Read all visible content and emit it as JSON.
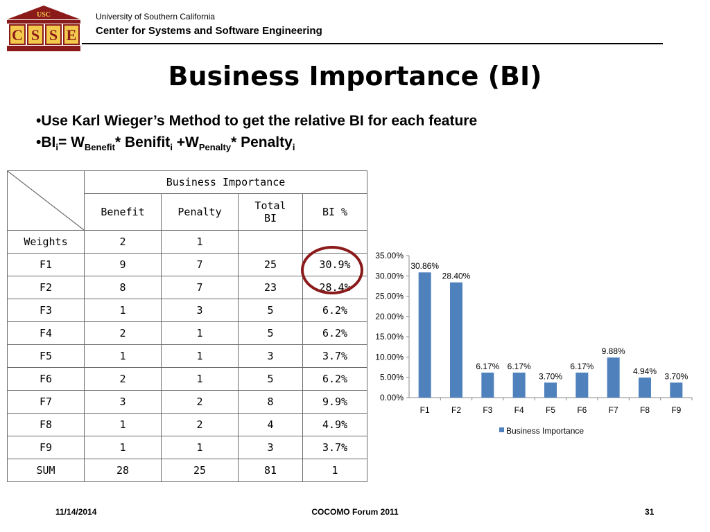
{
  "header": {
    "logo_text": "USC",
    "logo_letters": [
      "C",
      "S",
      "S",
      "E"
    ],
    "university": "University of Southern California",
    "center": "Center for Systems and Software Engineering"
  },
  "title": "Business Importance (BI)",
  "bullets": {
    "b1": "•Use Karl Wieger’s Method to get the relative BI for each feature",
    "b2": {
      "prefix": "•BI",
      "sub_i": "i",
      "eq": "= W",
      "sub_benefit": "Benefit",
      "mid": "* Benifit",
      "plus": " +W",
      "sub_penalty": "Penalty",
      "end": "* Penalty"
    }
  },
  "table": {
    "group_header": "Business Importance",
    "columns": [
      "Benefit",
      "Penalty",
      "Total BI",
      "BI %"
    ],
    "rows": [
      {
        "label": "Weights",
        "benefit": "2",
        "penalty": "1",
        "total": "",
        "bi": ""
      },
      {
        "label": "F1",
        "benefit": "9",
        "penalty": "7",
        "total": "25",
        "bi": "30.9%"
      },
      {
        "label": "F2",
        "benefit": "8",
        "penalty": "7",
        "total": "23",
        "bi": "28.4%"
      },
      {
        "label": "F3",
        "benefit": "1",
        "penalty": "3",
        "total": "5",
        "bi": "6.2%"
      },
      {
        "label": "F4",
        "benefit": "2",
        "penalty": "1",
        "total": "5",
        "bi": "6.2%"
      },
      {
        "label": "F5",
        "benefit": "1",
        "penalty": "1",
        "total": "3",
        "bi": "3.7%"
      },
      {
        "label": "F6",
        "benefit": "2",
        "penalty": "1",
        "total": "5",
        "bi": "6.2%"
      },
      {
        "label": "F7",
        "benefit": "3",
        "penalty": "2",
        "total": "8",
        "bi": "9.9%"
      },
      {
        "label": "F8",
        "benefit": "1",
        "penalty": "2",
        "total": "4",
        "bi": "4.9%"
      },
      {
        "label": "F9",
        "benefit": "1",
        "penalty": "1",
        "total": "3",
        "bi": "3.7%"
      },
      {
        "label": "SUM",
        "benefit": "28",
        "penalty": "25",
        "total": "81",
        "bi": "1"
      }
    ]
  },
  "chart_data": {
    "type": "bar",
    "categories": [
      "F1",
      "F2",
      "F3",
      "F4",
      "F5",
      "F6",
      "F7",
      "F8",
      "F9"
    ],
    "series": [
      {
        "name": "Business Importance",
        "values": [
          30.86,
          28.4,
          6.17,
          6.17,
          3.7,
          6.17,
          9.88,
          4.94,
          3.7
        ],
        "labels": [
          "30.86%",
          "28.40%",
          "6.17%",
          "6.17%",
          "3.70%",
          "6.17%",
          "9.88%",
          "4.94%",
          "3.70%"
        ]
      }
    ],
    "ylim": [
      0,
      35
    ],
    "yticks": [
      "0.00%",
      "5.00%",
      "10.00%",
      "15.00%",
      "20.00%",
      "25.00%",
      "30.00%",
      "35.00%"
    ],
    "legend": "bottom",
    "bar_color": "#4f81bd",
    "grid": false
  },
  "footer": {
    "date": "11/14/2014",
    "event": "COCOMO Forum 2011",
    "page": "31"
  }
}
